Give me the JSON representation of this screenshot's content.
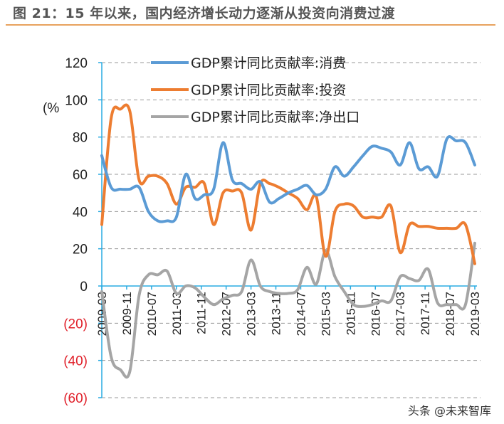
{
  "title": "图 21：15 年以来，国内经济增长动力逐渐从投资向消费过渡",
  "watermark": "头条 @未来智库",
  "chart_data": {
    "type": "line",
    "title": "图 21：15 年以来，国内经济增长动力逐渐从投资向消费过渡",
    "ylabel": "(%",
    "xlabel": "",
    "ylim": [
      -60,
      120
    ],
    "yticks": [
      120,
      100,
      80,
      60,
      40,
      20,
      0,
      -20,
      -40,
      -60
    ],
    "ytick_labels": [
      "120",
      "100",
      "80",
      "60",
      "40",
      "20",
      "0",
      "(20)",
      "(40)",
      "(60)"
    ],
    "negative_label_color": "#e0202a",
    "grid": "horizontal dashed",
    "legend_placement": "top",
    "x_start": "2009-03",
    "x_end": "2019-03",
    "x_frequency": "quarterly",
    "xtick_labels": [
      "2009-03",
      "2009-11",
      "2010-07",
      "2011-03",
      "2011-11",
      "2012-07",
      "2013-03",
      "2013-11",
      "2014-07",
      "2015-03",
      "2015-11",
      "2016-07",
      "2017-03",
      "2017-11",
      "2018-07",
      "2019-03"
    ],
    "series": [
      {
        "name": "GDP累计同比贡献率:消费",
        "color": "#5b9bd5",
        "values": [
          70,
          53,
          52,
          52,
          53,
          40,
          35,
          35,
          37,
          60,
          47,
          49,
          52,
          77,
          57,
          55,
          52,
          56,
          45,
          47,
          50,
          52,
          54,
          49,
          52,
          64,
          59,
          64,
          70,
          75,
          74,
          72,
          65,
          77,
          63,
          64,
          59,
          79,
          78,
          77,
          65
        ]
      },
      {
        "name": "GDP累计同比贡献率:投资",
        "color": "#ed7d31",
        "values": [
          33,
          90,
          95,
          94,
          57,
          59,
          59,
          55,
          44,
          53,
          53,
          55,
          33,
          50,
          51,
          50,
          30,
          55,
          55,
          53,
          50,
          47,
          41,
          48,
          16,
          40,
          44,
          43,
          37,
          37,
          37,
          43,
          18,
          33,
          32,
          32,
          31,
          31,
          31,
          33,
          12
        ]
      },
      {
        "name": "GDP累计同比贡献率:净出口",
        "color": "#a5a5a5",
        "values": [
          -3,
          -38,
          -45,
          -46,
          -5,
          6,
          6,
          8,
          -4,
          0,
          -1,
          -6,
          -10,
          -7,
          -5,
          -3,
          14,
          0,
          -3,
          -4,
          -4,
          -2,
          10,
          1,
          19,
          5,
          -3,
          -10,
          -11,
          -10,
          -8,
          -8,
          5,
          4,
          3,
          9,
          -9,
          -10,
          -10,
          -10,
          23
        ]
      }
    ],
    "axis_color": "#29abe2"
  }
}
